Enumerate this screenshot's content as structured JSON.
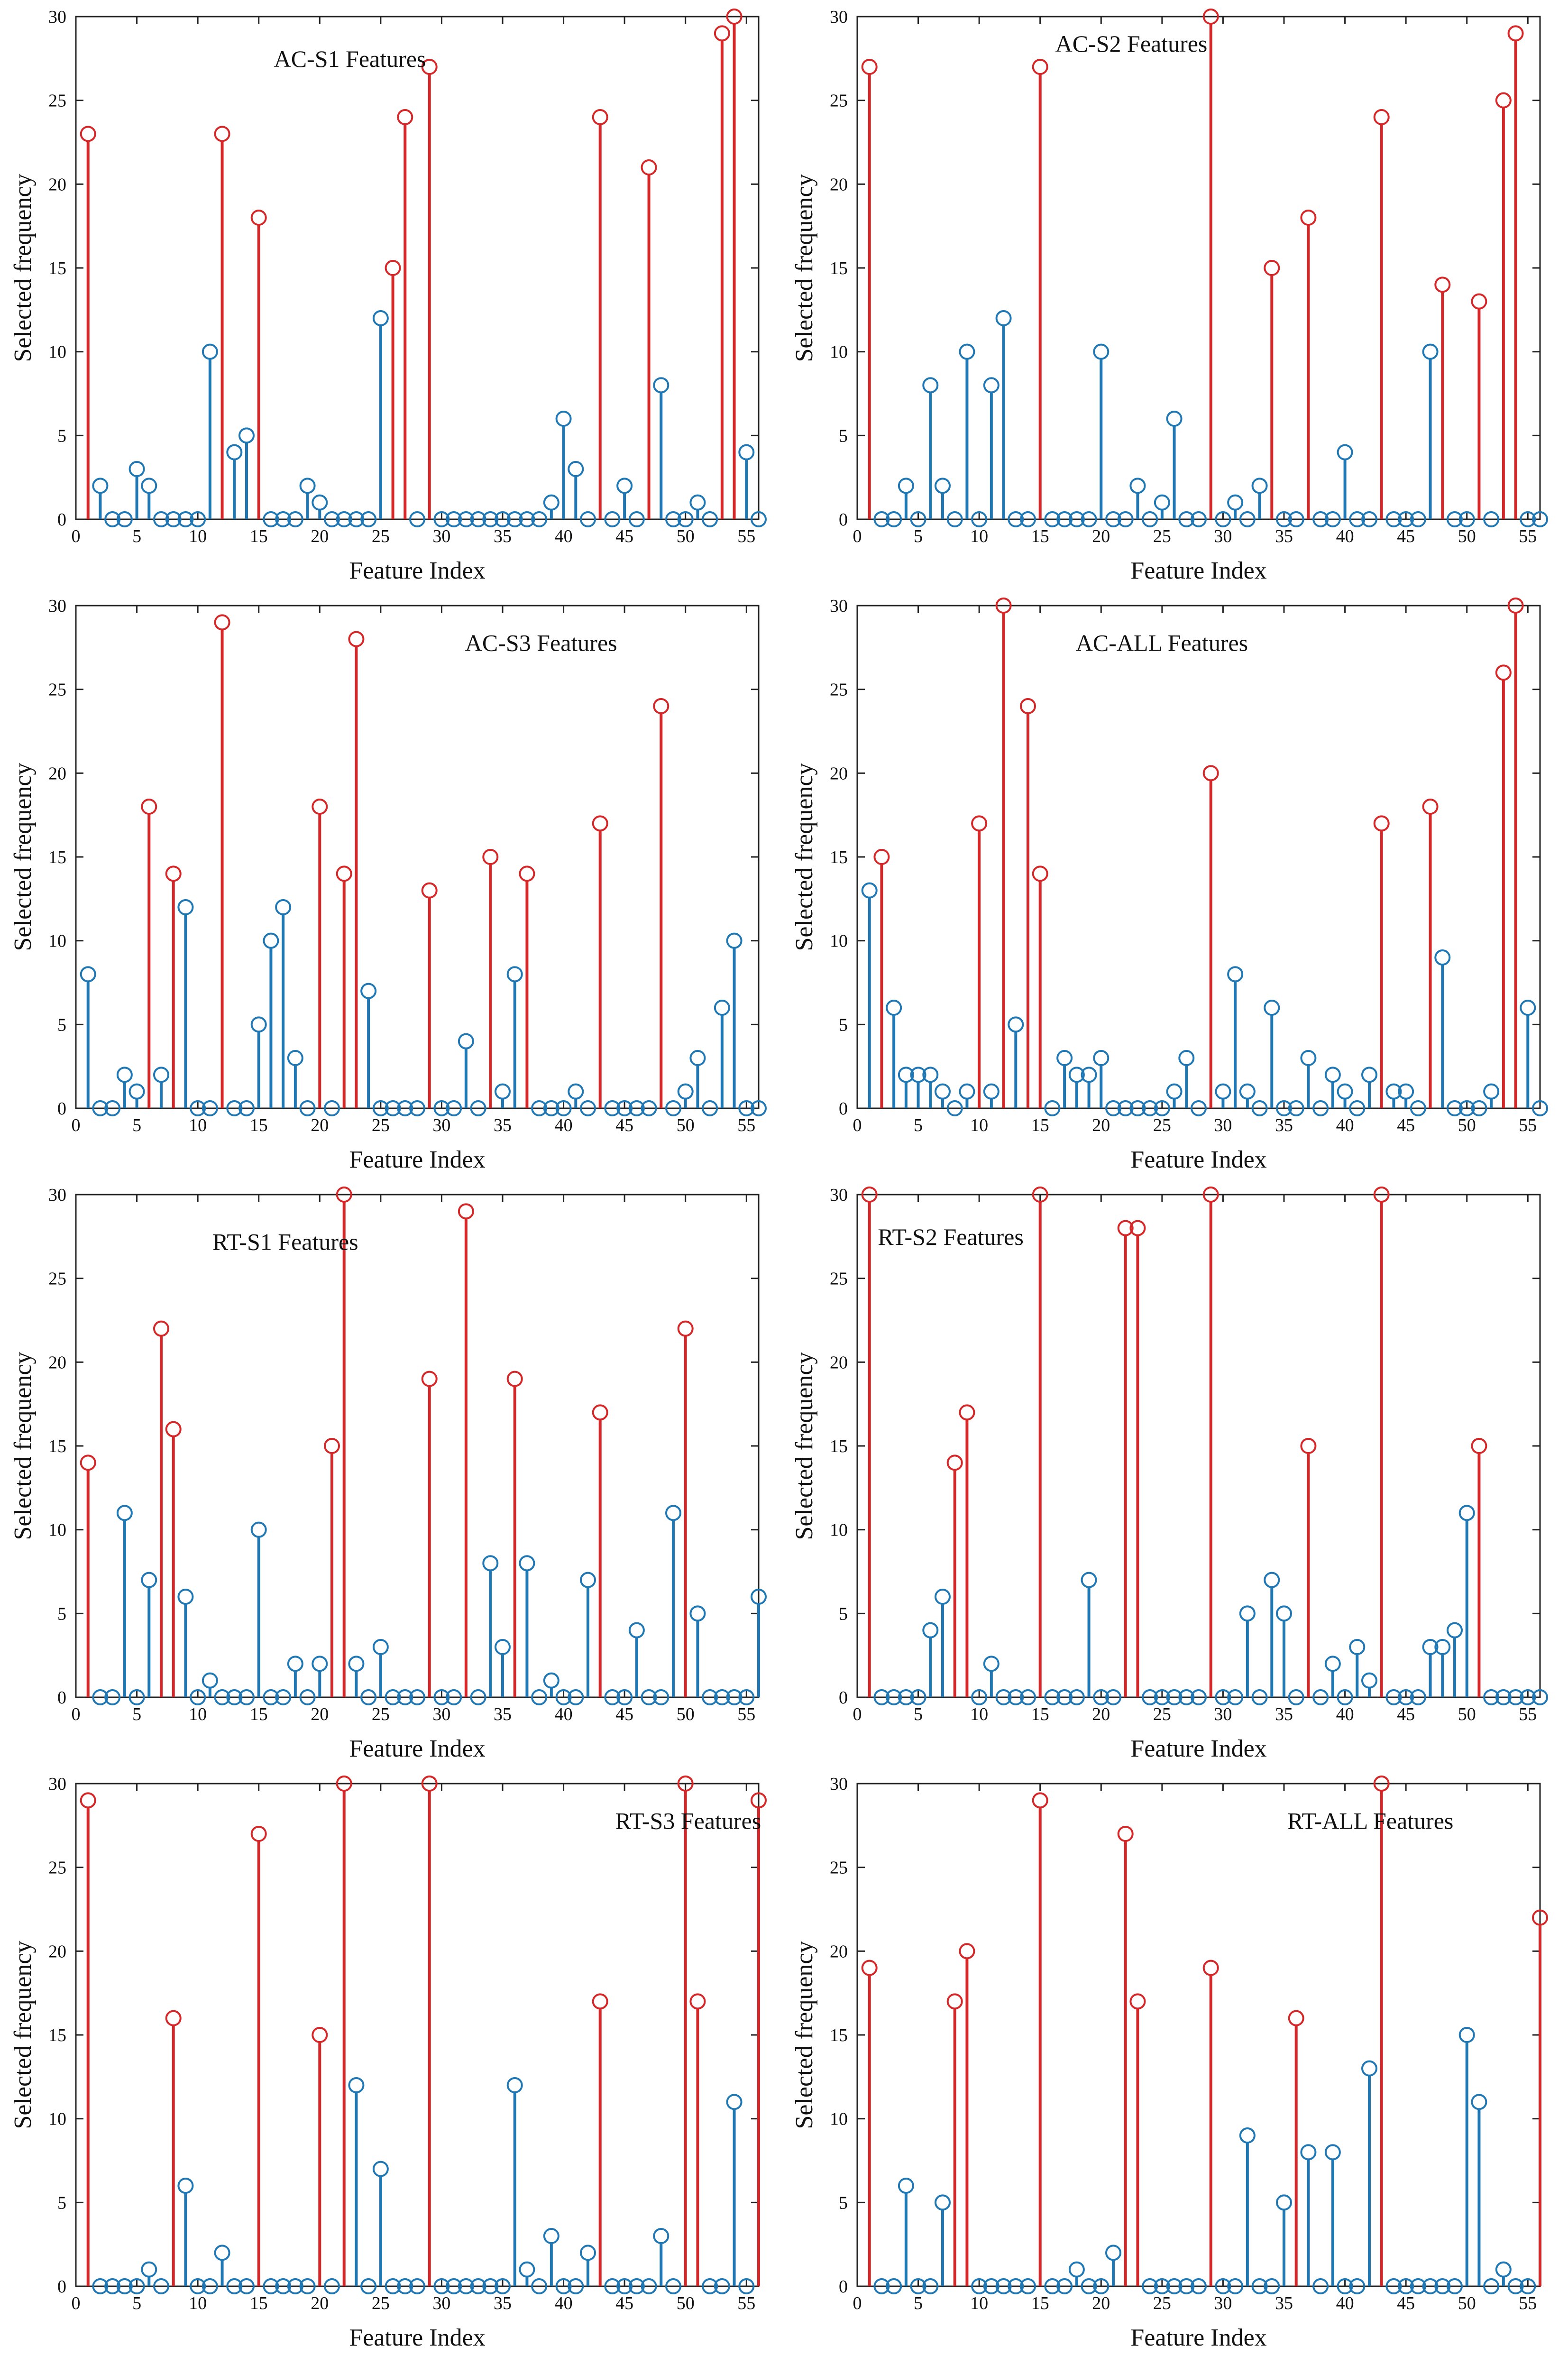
{
  "colors": {
    "high": "#d62728",
    "low": "#1f77b4",
    "axis": "#222222"
  },
  "chart_data": [
    {
      "type": "stem",
      "title": "AC-S1 Features",
      "xlabel": "Feature Index",
      "ylabel": "Selected frequency",
      "xlim": [
        0,
        56
      ],
      "ylim": [
        0,
        30
      ],
      "xticks": [
        0,
        5,
        10,
        15,
        20,
        25,
        30,
        35,
        40,
        45,
        50,
        55
      ],
      "yticks": [
        0,
        5,
        10,
        15,
        20,
        25,
        30
      ],
      "threshold": 13,
      "x": [
        1,
        2,
        3,
        4,
        5,
        6,
        7,
        8,
        9,
        10,
        11,
        12,
        13,
        14,
        15,
        16,
        17,
        18,
        19,
        20,
        21,
        22,
        23,
        24,
        25,
        26,
        27,
        28,
        29,
        30,
        31,
        32,
        33,
        34,
        35,
        36,
        37,
        38,
        39,
        40,
        41,
        42,
        43,
        44,
        45,
        46,
        47,
        48,
        49,
        50,
        51,
        52,
        53,
        54,
        55,
        56
      ],
      "values": [
        23,
        2,
        0,
        0,
        3,
        2,
        0,
        0,
        0,
        0,
        10,
        23,
        4,
        5,
        18,
        0,
        0,
        0,
        2,
        1,
        0,
        0,
        0,
        0,
        12,
        15,
        24,
        0,
        27,
        0,
        0,
        0,
        0,
        0,
        0,
        0,
        0,
        0,
        1,
        6,
        3,
        0,
        24,
        0,
        2,
        0,
        21,
        8,
        0,
        0,
        1,
        0,
        29,
        30,
        4,
        0
      ]
    },
    {
      "type": "stem",
      "title": "AC-S2 Features",
      "xlabel": "Feature Index",
      "ylabel": "Selected frequency",
      "xlim": [
        0,
        56
      ],
      "ylim": [
        0,
        30
      ],
      "xticks": [
        0,
        5,
        10,
        15,
        20,
        25,
        30,
        35,
        40,
        45,
        50,
        55
      ],
      "yticks": [
        0,
        5,
        10,
        15,
        20,
        25,
        30
      ],
      "threshold": 13,
      "x": [
        1,
        2,
        3,
        4,
        5,
        6,
        7,
        8,
        9,
        10,
        11,
        12,
        13,
        14,
        15,
        16,
        17,
        18,
        19,
        20,
        21,
        22,
        23,
        24,
        25,
        26,
        27,
        28,
        29,
        30,
        31,
        32,
        33,
        34,
        35,
        36,
        37,
        38,
        39,
        40,
        41,
        42,
        43,
        44,
        45,
        46,
        47,
        48,
        49,
        50,
        51,
        52,
        53,
        54,
        55,
        56
      ],
      "values": [
        27,
        0,
        0,
        2,
        0,
        8,
        2,
        0,
        10,
        0,
        8,
        12,
        0,
        0,
        27,
        0,
        0,
        0,
        0,
        10,
        0,
        0,
        2,
        0,
        1,
        6,
        0,
        0,
        30,
        0,
        1,
        0,
        2,
        15,
        0,
        0,
        18,
        0,
        0,
        4,
        0,
        0,
        24,
        0,
        0,
        0,
        10,
        14,
        0,
        0,
        13,
        0,
        25,
        29,
        0,
        0
      ]
    },
    {
      "type": "stem",
      "title": "AC-S3 Features",
      "xlabel": "Feature Index",
      "ylabel": "Selected frequency",
      "xlim": [
        0,
        56
      ],
      "ylim": [
        0,
        30
      ],
      "xticks": [
        0,
        5,
        10,
        15,
        20,
        25,
        30,
        35,
        40,
        45,
        50,
        55
      ],
      "yticks": [
        0,
        5,
        10,
        15,
        20,
        25,
        30
      ],
      "threshold": 13,
      "x": [
        1,
        2,
        3,
        4,
        5,
        6,
        7,
        8,
        9,
        10,
        11,
        12,
        13,
        14,
        15,
        16,
        17,
        18,
        19,
        20,
        21,
        22,
        23,
        24,
        25,
        26,
        27,
        28,
        29,
        30,
        31,
        32,
        33,
        34,
        35,
        36,
        37,
        38,
        39,
        40,
        41,
        42,
        43,
        44,
        45,
        46,
        47,
        48,
        49,
        50,
        51,
        52,
        53,
        54,
        55,
        56
      ],
      "values": [
        8,
        0,
        0,
        2,
        1,
        18,
        2,
        14,
        12,
        0,
        0,
        29,
        0,
        0,
        5,
        10,
        12,
        3,
        0,
        18,
        0,
        14,
        28,
        7,
        0,
        0,
        0,
        0,
        13,
        0,
        0,
        4,
        0,
        15,
        1,
        8,
        14,
        0,
        0,
        0,
        1,
        0,
        17,
        0,
        0,
        0,
        0,
        24,
        0,
        1,
        3,
        0,
        6,
        10,
        0,
        0
      ]
    },
    {
      "type": "stem",
      "title": "AC-ALL Features",
      "xlabel": "Feature Index",
      "ylabel": "Selected frequency",
      "xlim": [
        0,
        56
      ],
      "ylim": [
        0,
        30
      ],
      "xticks": [
        0,
        5,
        10,
        15,
        20,
        25,
        30,
        35,
        40,
        45,
        50,
        55
      ],
      "yticks": [
        0,
        5,
        10,
        15,
        20,
        25,
        30
      ],
      "threshold": 13.5,
      "x": [
        1,
        2,
        3,
        4,
        5,
        6,
        7,
        8,
        9,
        10,
        11,
        12,
        13,
        14,
        15,
        16,
        17,
        18,
        19,
        20,
        21,
        22,
        23,
        24,
        25,
        26,
        27,
        28,
        29,
        30,
        31,
        32,
        33,
        34,
        35,
        36,
        37,
        38,
        39,
        40,
        41,
        42,
        43,
        44,
        45,
        46,
        47,
        48,
        49,
        50,
        51,
        52,
        53,
        54,
        55,
        56
      ],
      "values": [
        13,
        15,
        6,
        2,
        2,
        2,
        1,
        0,
        1,
        17,
        1,
        30,
        5,
        24,
        14,
        0,
        3,
        2,
        2,
        3,
        0,
        0,
        0,
        0,
        0,
        1,
        3,
        0,
        20,
        1,
        8,
        1,
        0,
        6,
        0,
        0,
        3,
        0,
        2,
        1,
        0,
        2,
        17,
        1,
        1,
        0,
        18,
        9,
        0,
        0,
        0,
        1,
        26,
        30,
        6,
        0
      ]
    },
    {
      "type": "stem",
      "title": "RT-S1 Features",
      "xlabel": "Feature Index",
      "ylabel": "Selected frequency",
      "xlim": [
        0,
        56
      ],
      "ylim": [
        0,
        30
      ],
      "xticks": [
        0,
        5,
        10,
        15,
        20,
        25,
        30,
        35,
        40,
        45,
        50,
        55
      ],
      "yticks": [
        0,
        5,
        10,
        15,
        20,
        25,
        30
      ],
      "threshold": 13,
      "x": [
        1,
        2,
        3,
        4,
        5,
        6,
        7,
        8,
        9,
        10,
        11,
        12,
        13,
        14,
        15,
        16,
        17,
        18,
        19,
        20,
        21,
        22,
        23,
        24,
        25,
        26,
        27,
        28,
        29,
        30,
        31,
        32,
        33,
        34,
        35,
        36,
        37,
        38,
        39,
        40,
        41,
        42,
        43,
        44,
        45,
        46,
        47,
        48,
        49,
        50,
        51,
        52,
        53,
        54,
        55,
        56
      ],
      "values": [
        14,
        0,
        0,
        11,
        0,
        7,
        22,
        16,
        6,
        0,
        1,
        0,
        0,
        0,
        10,
        0,
        0,
        2,
        0,
        2,
        15,
        30,
        2,
        0,
        3,
        0,
        0,
        0,
        19,
        0,
        0,
        29,
        0,
        8,
        3,
        19,
        8,
        0,
        1,
        0,
        0,
        7,
        17,
        0,
        0,
        4,
        0,
        0,
        11,
        22,
        5,
        0,
        0,
        0,
        0,
        6
      ]
    },
    {
      "type": "stem",
      "title": "RT-S2 Features",
      "xlabel": "Feature Index",
      "ylabel": "Selected frequency",
      "xlim": [
        0,
        56
      ],
      "ylim": [
        0,
        30
      ],
      "xticks": [
        0,
        5,
        10,
        15,
        20,
        25,
        30,
        35,
        40,
        45,
        50,
        55
      ],
      "yticks": [
        0,
        5,
        10,
        15,
        20,
        25,
        30
      ],
      "threshold": 13,
      "x": [
        1,
        2,
        3,
        4,
        5,
        6,
        7,
        8,
        9,
        10,
        11,
        12,
        13,
        14,
        15,
        16,
        17,
        18,
        19,
        20,
        21,
        22,
        23,
        24,
        25,
        26,
        27,
        28,
        29,
        30,
        31,
        32,
        33,
        34,
        35,
        36,
        37,
        38,
        39,
        40,
        41,
        42,
        43,
        44,
        45,
        46,
        47,
        48,
        49,
        50,
        51,
        52,
        53,
        54,
        55,
        56
      ],
      "values": [
        30,
        0,
        0,
        0,
        0,
        4,
        6,
        14,
        17,
        0,
        2,
        0,
        0,
        0,
        30,
        0,
        0,
        0,
        7,
        0,
        0,
        28,
        28,
        0,
        0,
        0,
        0,
        0,
        30,
        0,
        0,
        5,
        0,
        7,
        5,
        0,
        15,
        0,
        2,
        0,
        3,
        1,
        30,
        0,
        0,
        0,
        3,
        3,
        4,
        11,
        15,
        0,
        0,
        0,
        0,
        0
      ]
    },
    {
      "type": "stem",
      "title": "RT-S3 Features",
      "xlabel": "Feature Index",
      "ylabel": "Selected frequency",
      "xlim": [
        0,
        56
      ],
      "ylim": [
        0,
        30
      ],
      "xticks": [
        0,
        5,
        10,
        15,
        20,
        25,
        30,
        35,
        40,
        45,
        50,
        55
      ],
      "yticks": [
        0,
        5,
        10,
        15,
        20,
        25,
        30
      ],
      "threshold": 13,
      "x": [
        1,
        2,
        3,
        4,
        5,
        6,
        7,
        8,
        9,
        10,
        11,
        12,
        13,
        14,
        15,
        16,
        17,
        18,
        19,
        20,
        21,
        22,
        23,
        24,
        25,
        26,
        27,
        28,
        29,
        30,
        31,
        32,
        33,
        34,
        35,
        36,
        37,
        38,
        39,
        40,
        41,
        42,
        43,
        44,
        45,
        46,
        47,
        48,
        49,
        50,
        51,
        52,
        53,
        54,
        55,
        56
      ],
      "values": [
        29,
        0,
        0,
        0,
        0,
        1,
        0,
        16,
        6,
        0,
        0,
        2,
        0,
        0,
        27,
        0,
        0,
        0,
        0,
        15,
        0,
        30,
        12,
        0,
        7,
        0,
        0,
        0,
        30,
        0,
        0,
        0,
        0,
        0,
        0,
        12,
        1,
        0,
        3,
        0,
        0,
        2,
        17,
        0,
        0,
        0,
        0,
        3,
        0,
        30,
        17,
        0,
        0,
        11,
        0,
        29
      ]
    },
    {
      "type": "stem",
      "title": "RT-ALL Features",
      "xlabel": "Feature Index",
      "ylabel": "Selected frequency",
      "xlim": [
        0,
        56
      ],
      "ylim": [
        0,
        30
      ],
      "xticks": [
        0,
        5,
        10,
        15,
        20,
        25,
        30,
        35,
        40,
        45,
        50,
        55
      ],
      "yticks": [
        0,
        5,
        10,
        15,
        20,
        25,
        30
      ],
      "threshold": 15.5,
      "x": [
        1,
        2,
        3,
        4,
        5,
        6,
        7,
        8,
        9,
        10,
        11,
        12,
        13,
        14,
        15,
        16,
        17,
        18,
        19,
        20,
        21,
        22,
        23,
        24,
        25,
        26,
        27,
        28,
        29,
        30,
        31,
        32,
        33,
        34,
        35,
        36,
        37,
        38,
        39,
        40,
        41,
        42,
        43,
        44,
        45,
        46,
        47,
        48,
        49,
        50,
        51,
        52,
        53,
        54,
        55,
        56
      ],
      "values": [
        19,
        0,
        0,
        6,
        0,
        0,
        5,
        17,
        20,
        0,
        0,
        0,
        0,
        0,
        29,
        0,
        0,
        1,
        0,
        0,
        2,
        27,
        17,
        0,
        0,
        0,
        0,
        0,
        19,
        0,
        0,
        9,
        0,
        0,
        5,
        16,
        8,
        0,
        8,
        0,
        0,
        13,
        30,
        0,
        0,
        0,
        0,
        0,
        0,
        15,
        11,
        0,
        1,
        0,
        0,
        22
      ]
    }
  ]
}
